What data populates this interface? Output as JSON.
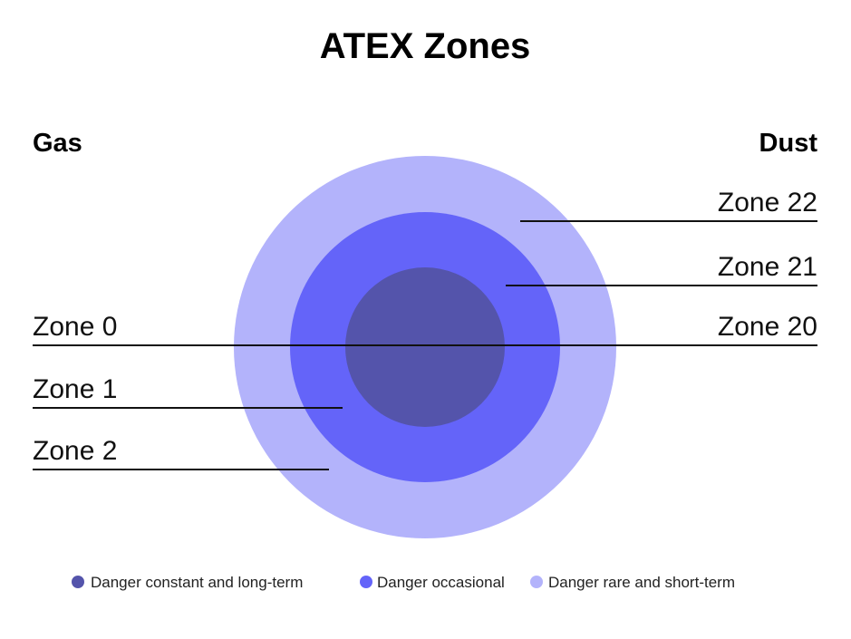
{
  "title": "ATEX Zones",
  "gas": {
    "heading": "Gas",
    "zones": [
      "Zone 0",
      "Zone 1",
      "Zone 2"
    ]
  },
  "dust": {
    "heading": "Dust",
    "zones": [
      "Zone 20",
      "Zone 21",
      "Zone 22"
    ]
  },
  "legend": [
    "Danger constant and long-term",
    "Danger occasional",
    "Danger rare and short-term"
  ]
}
